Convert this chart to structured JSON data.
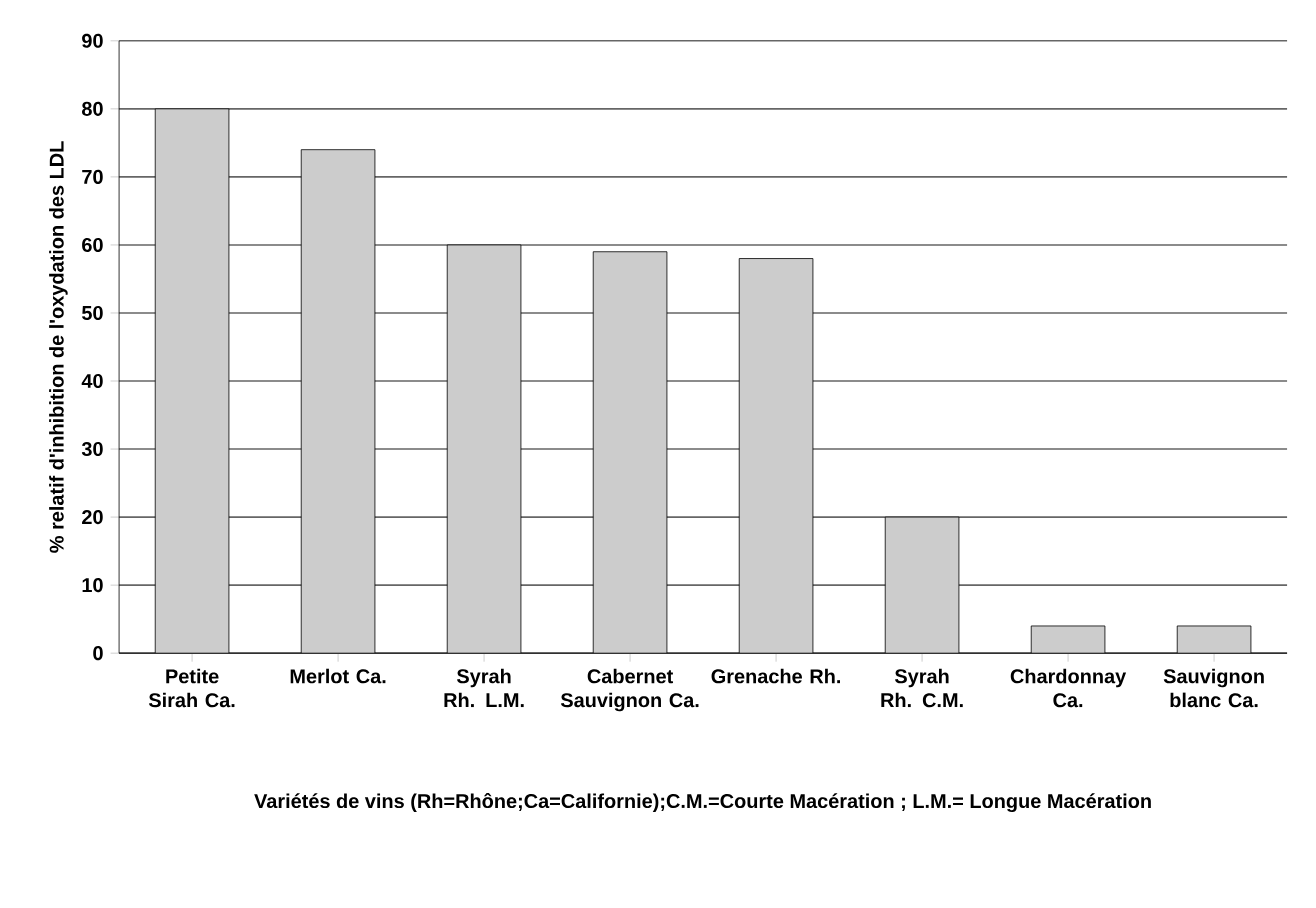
{
  "chart_data": {
    "type": "bar",
    "xlabel": "Variétés de vins (Rh=Rhône;Ca=Californie);C.M.=Courte Macération ; L.M.= Longue Macération",
    "ylabel": "%  relatif d'inhibition de l'oxydation des LDL",
    "categories": [
      "Petite Sirah Ca.",
      "Merlot Ca.",
      "Syrah Rh. L.M.",
      "Cabernet Sauvignon Ca.",
      "Grenache Rh.",
      "Syrah Rh. C.M.",
      "Chardonnay Ca.",
      "Sauvignon blanc Ca."
    ],
    "values": [
      80,
      74,
      60,
      59,
      58,
      20,
      4,
      4
    ],
    "color": "#cccccc",
    "ylim": [
      0,
      90
    ],
    "yticks": [
      0,
      10,
      20,
      30,
      40,
      50,
      60,
      70,
      80,
      90
    ],
    "grid": "y"
  }
}
